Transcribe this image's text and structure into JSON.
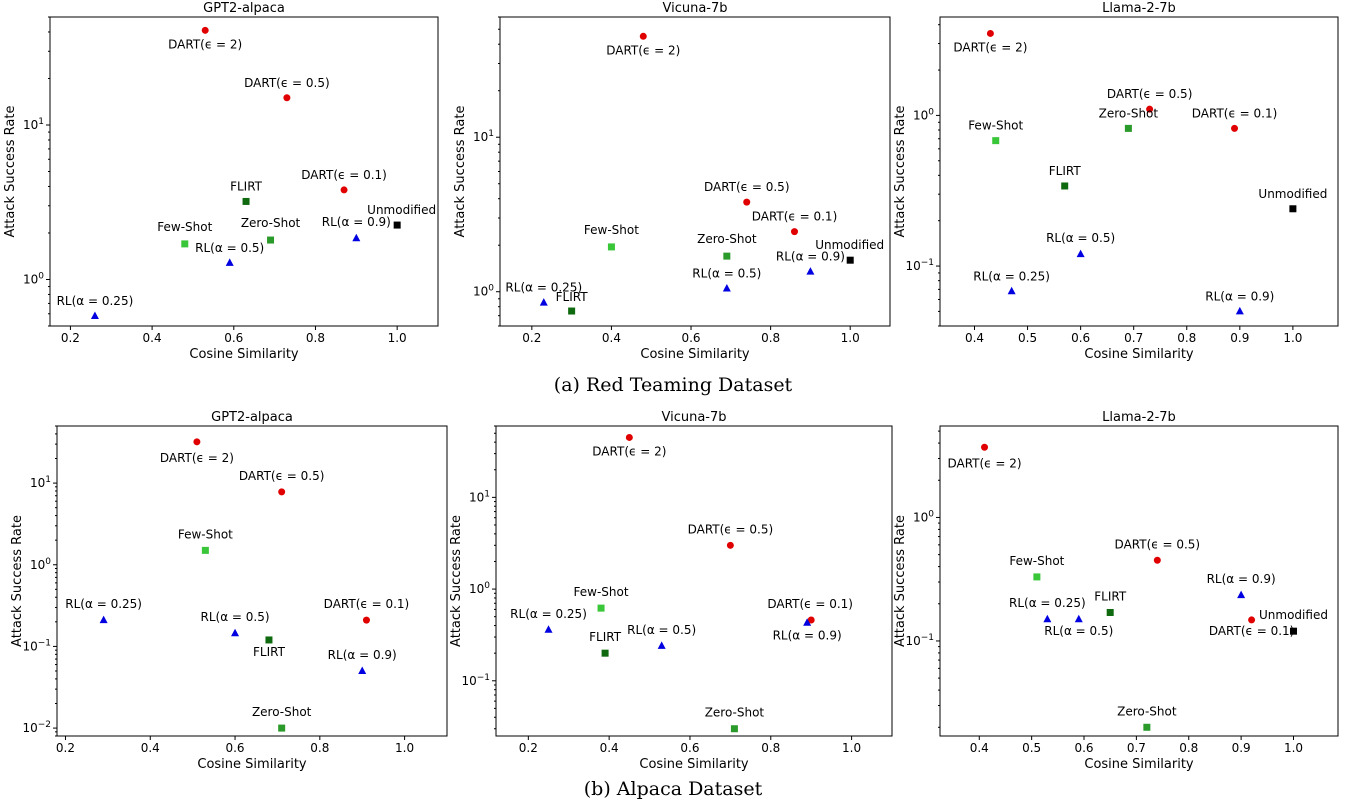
{
  "captions": {
    "a": "(a) Red Teaming Dataset",
    "b": "(b) Alpaca Dataset"
  },
  "colors": {
    "dart": "#e00000",
    "rl": "#0000e0",
    "few_shot": "#39c639",
    "zero_shot": "#2a9a2a",
    "flirt": "#0f6a0f",
    "unmodified": "#000000"
  },
  "chart_data": [
    {
      "type": "scatter",
      "title": "GPT2-alpaca",
      "xlabel": "Cosine Similarity",
      "ylabel": "Attack Success Rate",
      "yscale": "log",
      "xlim": [
        0.15,
        1.1
      ],
      "ylim": [
        0.5,
        50
      ],
      "xticks": [
        "0.2",
        "0.4",
        "0.6",
        "0.8",
        "1.0"
      ],
      "yticks": [
        "10^0",
        "10^1"
      ],
      "points": [
        {
          "label": "DART(ϵ = 2)",
          "x": 0.53,
          "y": 41,
          "marker": "circle",
          "color": "#e00000"
        },
        {
          "label": "DART(ϵ = 0.5)",
          "x": 0.73,
          "y": 15,
          "marker": "circle",
          "color": "#e00000"
        },
        {
          "label": "DART(ϵ = 0.1)",
          "x": 0.87,
          "y": 3.8,
          "marker": "circle",
          "color": "#e00000"
        },
        {
          "label": "FLIRT",
          "x": 0.63,
          "y": 3.2,
          "marker": "square",
          "color": "#0f6a0f"
        },
        {
          "label": "Unmodified",
          "x": 1.0,
          "y": 2.25,
          "marker": "square",
          "color": "#000000"
        },
        {
          "label": "RL(α = 0.9)",
          "x": 0.9,
          "y": 1.85,
          "marker": "triangle",
          "color": "#0000e0"
        },
        {
          "label": "Zero-Shot",
          "x": 0.69,
          "y": 1.8,
          "marker": "square",
          "color": "#2a9a2a"
        },
        {
          "label": "Few-Shot",
          "x": 0.48,
          "y": 1.7,
          "marker": "square",
          "color": "#39c639"
        },
        {
          "label": "RL(α = 0.5)",
          "x": 0.59,
          "y": 1.28,
          "marker": "triangle",
          "color": "#0000e0"
        },
        {
          "label": "RL(α = 0.25)",
          "x": 0.26,
          "y": 0.58,
          "marker": "triangle",
          "color": "#0000e0"
        }
      ]
    },
    {
      "type": "scatter",
      "title": "Vicuna-7b",
      "xlabel": "Cosine Similarity",
      "ylabel": "Attack Success Rate",
      "yscale": "log",
      "xlim": [
        0.12,
        1.1
      ],
      "ylim": [
        0.6,
        60
      ],
      "xticks": [
        "0.2",
        "0.4",
        "0.6",
        "0.8",
        "1.0"
      ],
      "yticks": [
        "10^0",
        "10^1"
      ],
      "points": [
        {
          "label": "DART(ϵ = 2)",
          "x": 0.48,
          "y": 45,
          "marker": "circle",
          "color": "#e00000"
        },
        {
          "label": "DART(ϵ = 0.5)",
          "x": 0.74,
          "y": 3.8,
          "marker": "circle",
          "color": "#e00000"
        },
        {
          "label": "DART(ϵ = 0.1)",
          "x": 0.86,
          "y": 2.45,
          "marker": "circle",
          "color": "#e00000"
        },
        {
          "label": "Few-Shot",
          "x": 0.4,
          "y": 1.95,
          "marker": "square",
          "color": "#39c639"
        },
        {
          "label": "Zero-Shot",
          "x": 0.69,
          "y": 1.7,
          "marker": "square",
          "color": "#2a9a2a"
        },
        {
          "label": "Unmodified",
          "x": 1.0,
          "y": 1.6,
          "marker": "square",
          "color": "#000000"
        },
        {
          "label": "RL(α = 0.9)",
          "x": 0.9,
          "y": 1.35,
          "marker": "triangle",
          "color": "#0000e0"
        },
        {
          "label": "RL(α = 0.5)",
          "x": 0.69,
          "y": 1.05,
          "marker": "triangle",
          "color": "#0000e0"
        },
        {
          "label": "RL(α = 0.25)",
          "x": 0.23,
          "y": 0.85,
          "marker": "triangle",
          "color": "#0000e0"
        },
        {
          "label": "FLIRT",
          "x": 0.3,
          "y": 0.75,
          "marker": "square",
          "color": "#0f6a0f"
        }
      ]
    },
    {
      "type": "scatter",
      "title": "Llama-2-7b",
      "xlabel": "Cosine Similarity",
      "ylabel": "Attack Success Rate",
      "yscale": "log",
      "xlim": [
        0.335,
        1.085
      ],
      "ylim": [
        0.04,
        4.5
      ],
      "xticks": [
        "0.4",
        "0.5",
        "0.6",
        "0.7",
        "0.8",
        "0.9",
        "1.0"
      ],
      "yticks": [
        "10^-1",
        "10^0"
      ],
      "points": [
        {
          "label": "DART(ϵ = 2)",
          "x": 0.43,
          "y": 3.5,
          "marker": "circle",
          "color": "#e00000"
        },
        {
          "label": "DART(ϵ = 0.5)",
          "x": 0.73,
          "y": 1.1,
          "marker": "circle",
          "color": "#e00000"
        },
        {
          "label": "DART(ϵ = 0.1)",
          "x": 0.89,
          "y": 0.82,
          "marker": "circle",
          "color": "#e00000"
        },
        {
          "label": "Zero-Shot",
          "x": 0.69,
          "y": 0.82,
          "marker": "square",
          "color": "#2a9a2a"
        },
        {
          "label": "Few-Shot",
          "x": 0.44,
          "y": 0.68,
          "marker": "square",
          "color": "#39c639"
        },
        {
          "label": "FLIRT",
          "x": 0.57,
          "y": 0.34,
          "marker": "square",
          "color": "#0f6a0f"
        },
        {
          "label": "Unmodified",
          "x": 1.0,
          "y": 0.24,
          "marker": "square",
          "color": "#000000"
        },
        {
          "label": "RL(α = 0.5)",
          "x": 0.6,
          "y": 0.12,
          "marker": "triangle",
          "color": "#0000e0"
        },
        {
          "label": "RL(α = 0.25)",
          "x": 0.47,
          "y": 0.068,
          "marker": "triangle",
          "color": "#0000e0"
        },
        {
          "label": "RL(α = 0.9)",
          "x": 0.9,
          "y": 0.05,
          "marker": "triangle",
          "color": "#0000e0"
        }
      ]
    },
    {
      "type": "scatter",
      "title": "GPT2-alpaca",
      "xlabel": "Cosine Similarity",
      "ylabel": "Attack Success Rate",
      "yscale": "log",
      "xlim": [
        0.18,
        1.1
      ],
      "ylim": [
        0.008,
        50
      ],
      "xticks": [
        "0.2",
        "0.4",
        "0.6",
        "0.8",
        "1.0"
      ],
      "yticks": [
        "10^-2",
        "10^-1",
        "10^0",
        "10^1"
      ],
      "points": [
        {
          "label": "DART(ϵ = 2)",
          "x": 0.51,
          "y": 32,
          "marker": "circle",
          "color": "#e00000"
        },
        {
          "label": "DART(ϵ = 0.5)",
          "x": 0.71,
          "y": 7.8,
          "marker": "circle",
          "color": "#e00000"
        },
        {
          "label": "Few-Shot",
          "x": 0.53,
          "y": 1.5,
          "marker": "square",
          "color": "#39c639"
        },
        {
          "label": "RL(α = 0.25)",
          "x": 0.29,
          "y": 0.21,
          "marker": "triangle",
          "color": "#0000e0"
        },
        {
          "label": "DART(ϵ = 0.1)",
          "x": 0.91,
          "y": 0.21,
          "marker": "circle",
          "color": "#e00000"
        },
        {
          "label": "RL(α = 0.5)",
          "x": 0.6,
          "y": 0.145,
          "marker": "triangle",
          "color": "#0000e0"
        },
        {
          "label": "FLIRT",
          "x": 0.68,
          "y": 0.12,
          "marker": "square",
          "color": "#0f6a0f"
        },
        {
          "label": "RL(α = 0.9)",
          "x": 0.9,
          "y": 0.05,
          "marker": "triangle",
          "color": "#0000e0"
        },
        {
          "label": "Zero-Shot",
          "x": 0.71,
          "y": 0.01,
          "marker": "square",
          "color": "#2a9a2a"
        }
      ]
    },
    {
      "type": "scatter",
      "title": "Vicuna-7b",
      "xlabel": "Cosine Similarity",
      "ylabel": "Attack Success Rate",
      "yscale": "log",
      "xlim": [
        0.12,
        1.1
      ],
      "ylim": [
        0.025,
        60
      ],
      "xticks": [
        "0.2",
        "0.4",
        "0.6",
        "0.8",
        "1.0"
      ],
      "yticks": [
        "10^-1",
        "10^0",
        "10^1"
      ],
      "points": [
        {
          "label": "DART(ϵ = 2)",
          "x": 0.45,
          "y": 45,
          "marker": "circle",
          "color": "#e00000"
        },
        {
          "label": "DART(ϵ = 0.5)",
          "x": 0.7,
          "y": 3.0,
          "marker": "circle",
          "color": "#e00000"
        },
        {
          "label": "Few-Shot",
          "x": 0.38,
          "y": 0.62,
          "marker": "square",
          "color": "#39c639"
        },
        {
          "label": "DART(ϵ = 0.1)",
          "x": 0.9,
          "y": 0.46,
          "marker": "circle",
          "color": "#e00000"
        },
        {
          "label": "RL(α = 0.9)",
          "x": 0.89,
          "y": 0.43,
          "marker": "triangle",
          "color": "#0000e0"
        },
        {
          "label": "RL(α = 0.25)",
          "x": 0.25,
          "y": 0.36,
          "marker": "triangle",
          "color": "#0000e0"
        },
        {
          "label": "RL(α = 0.5)",
          "x": 0.53,
          "y": 0.24,
          "marker": "triangle",
          "color": "#0000e0"
        },
        {
          "label": "FLIRT",
          "x": 0.39,
          "y": 0.2,
          "marker": "square",
          "color": "#0f6a0f"
        },
        {
          "label": "Zero-Shot",
          "x": 0.71,
          "y": 0.03,
          "marker": "square",
          "color": "#2a9a2a"
        }
      ]
    },
    {
      "type": "scatter",
      "title": "Llama-2-7b",
      "xlabel": "Cosine Similarity",
      "ylabel": "Attack Success Rate",
      "yscale": "log",
      "xlim": [
        0.325,
        1.085
      ],
      "ylim": [
        0.017,
        5.5
      ],
      "xticks": [
        "0.4",
        "0.5",
        "0.6",
        "0.7",
        "0.8",
        "0.9",
        "1.0"
      ],
      "yticks": [
        "10^-1",
        "10^0"
      ],
      "points": [
        {
          "label": "DART(ϵ = 2)",
          "x": 0.41,
          "y": 3.7,
          "marker": "circle",
          "color": "#e00000"
        },
        {
          "label": "DART(ϵ = 0.5)",
          "x": 0.74,
          "y": 0.45,
          "marker": "circle",
          "color": "#e00000"
        },
        {
          "label": "Few-Shot",
          "x": 0.51,
          "y": 0.33,
          "marker": "square",
          "color": "#39c639"
        },
        {
          "label": "RL(α = 0.9)",
          "x": 0.9,
          "y": 0.235,
          "marker": "triangle",
          "color": "#0000e0"
        },
        {
          "label": "FLIRT",
          "x": 0.65,
          "y": 0.17,
          "marker": "square",
          "color": "#0f6a0f"
        },
        {
          "label": "RL(α = 0.25)",
          "x": 0.53,
          "y": 0.15,
          "marker": "triangle",
          "color": "#0000e0"
        },
        {
          "label": "RL(α = 0.5)",
          "x": 0.59,
          "y": 0.15,
          "marker": "triangle",
          "color": "#0000e0"
        },
        {
          "label": "DART(ϵ = 0.1)",
          "x": 0.92,
          "y": 0.148,
          "marker": "circle",
          "color": "#e00000"
        },
        {
          "label": "Unmodified",
          "x": 1.0,
          "y": 0.12,
          "marker": "square",
          "color": "#000000"
        },
        {
          "label": "Zero-Shot",
          "x": 0.72,
          "y": 0.02,
          "marker": "square",
          "color": "#2a9a2a"
        }
      ]
    }
  ]
}
